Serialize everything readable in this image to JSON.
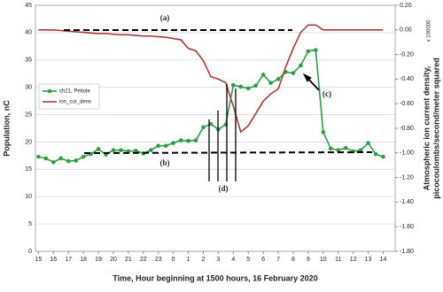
{
  "chart_data": {
    "type": "line",
    "xlabel": "Time, Hour beginning at 1500 hours, 16 February 2020",
    "ylabel": "Population, nC",
    "y2label": [
      "Atmospheric ion current density,",
      "picocoulombs/second/meter squared"
    ],
    "y2_multiplier": "x 100000",
    "annotations": [
      "(a)",
      "(b)",
      "(c)",
      "(d)"
    ],
    "x": [
      0,
      0.5,
      1,
      1.5,
      2,
      2.5,
      3,
      3.5,
      4,
      4.5,
      5,
      5.5,
      6,
      6.5,
      7,
      7.5,
      8,
      8.5,
      9,
      9.5,
      10,
      10.5,
      11,
      11.5,
      12,
      12.5,
      13,
      13.5,
      14,
      14.5,
      15,
      15.5,
      16,
      16.5,
      17,
      17.5,
      18,
      18.5,
      19,
      19.5,
      20,
      20.5,
      21,
      21.5,
      22,
      22.5,
      23
    ],
    "xlim": [
      -0.2,
      23.8
    ],
    "xticks": [
      {
        "value": 0,
        "label": "15"
      },
      {
        "value": 1,
        "label": "16"
      },
      {
        "value": 2,
        "label": "17"
      },
      {
        "value": 3,
        "label": "18"
      },
      {
        "value": 4,
        "label": "19"
      },
      {
        "value": 5,
        "label": "20"
      },
      {
        "value": 6,
        "label": "21"
      },
      {
        "value": 7,
        "label": "22"
      },
      {
        "value": 8,
        "label": "23"
      },
      {
        "value": 9,
        "label": "0"
      },
      {
        "value": 10,
        "label": "1"
      },
      {
        "value": 11,
        "label": "2"
      },
      {
        "value": 12,
        "label": "3"
      },
      {
        "value": 13,
        "label": "4"
      },
      {
        "value": 14,
        "label": "5"
      },
      {
        "value": 15,
        "label": "6"
      },
      {
        "value": 16,
        "label": "7"
      },
      {
        "value": 17,
        "label": "8"
      },
      {
        "value": 18,
        "label": "9"
      },
      {
        "value": 19,
        "label": "10"
      },
      {
        "value": 20,
        "label": "11"
      },
      {
        "value": 21,
        "label": "12"
      },
      {
        "value": 22,
        "label": "13"
      },
      {
        "value": 23,
        "label": "14"
      }
    ],
    "ylim": [
      0,
      45
    ],
    "yticks": [
      0,
      5,
      10,
      15,
      20,
      25,
      30,
      35,
      40,
      45
    ],
    "y2lim": [
      -1.8,
      0.2
    ],
    "y2ticks": [
      {
        "value": 0.2,
        "label": "0.20"
      },
      {
        "value": 0,
        "label": "0.00"
      },
      {
        "value": -0.2,
        "label": "-0.20"
      },
      {
        "value": -0.4,
        "label": "-0.40"
      },
      {
        "value": -0.6,
        "label": "-0.60"
      },
      {
        "value": -0.8,
        "label": "-0.80"
      },
      {
        "value": -1,
        "label": "-1.00"
      },
      {
        "value": -1.2,
        "label": "-1.20"
      },
      {
        "value": -1.4,
        "label": "-1.40"
      },
      {
        "value": -1.6,
        "label": "-1.60"
      },
      {
        "value": -1.8,
        "label": "-1.80"
      }
    ],
    "grid": true,
    "legend": "upper left",
    "series": [
      {
        "name": "ch21, Petiole",
        "color": "#2e9e45",
        "marker": "circle",
        "values": [
          17.3,
          17,
          16.3,
          17,
          16.5,
          16.6,
          17.3,
          17.8,
          18.7,
          17.7,
          18.5,
          18.5,
          18.3,
          18.4,
          17.9,
          18.5,
          19.3,
          19.3,
          19.8,
          20.3,
          20.2,
          20.3,
          22.7,
          23.3,
          22.3,
          23.2,
          30.4,
          30.1,
          29.8,
          30.3,
          32.3,
          30.8,
          31.5,
          32.8,
          32.6,
          34,
          36.6,
          36.8,
          21.8,
          18.8,
          18.5,
          18.9,
          18.3,
          18.5,
          19.8,
          17.8,
          17.3
        ]
      },
      {
        "name": "ion_cur_dens",
        "color": "#a83a3a",
        "axis": "y2",
        "values": [
          0,
          0,
          0,
          -0.005,
          -0.01,
          -0.015,
          -0.02,
          -0.025,
          -0.03,
          -0.03,
          -0.035,
          -0.04,
          -0.04,
          -0.045,
          -0.05,
          -0.05,
          -0.055,
          -0.06,
          -0.07,
          -0.08,
          -0.15,
          -0.17,
          -0.25,
          -0.38,
          -0.4,
          -0.43,
          -0.62,
          -0.83,
          -0.78,
          -0.68,
          -0.58,
          -0.52,
          -0.48,
          -0.3,
          -0.15,
          -0.02,
          0.04,
          0.04,
          0,
          0,
          0,
          0,
          0,
          0,
          0,
          0,
          0
        ]
      }
    ]
  }
}
